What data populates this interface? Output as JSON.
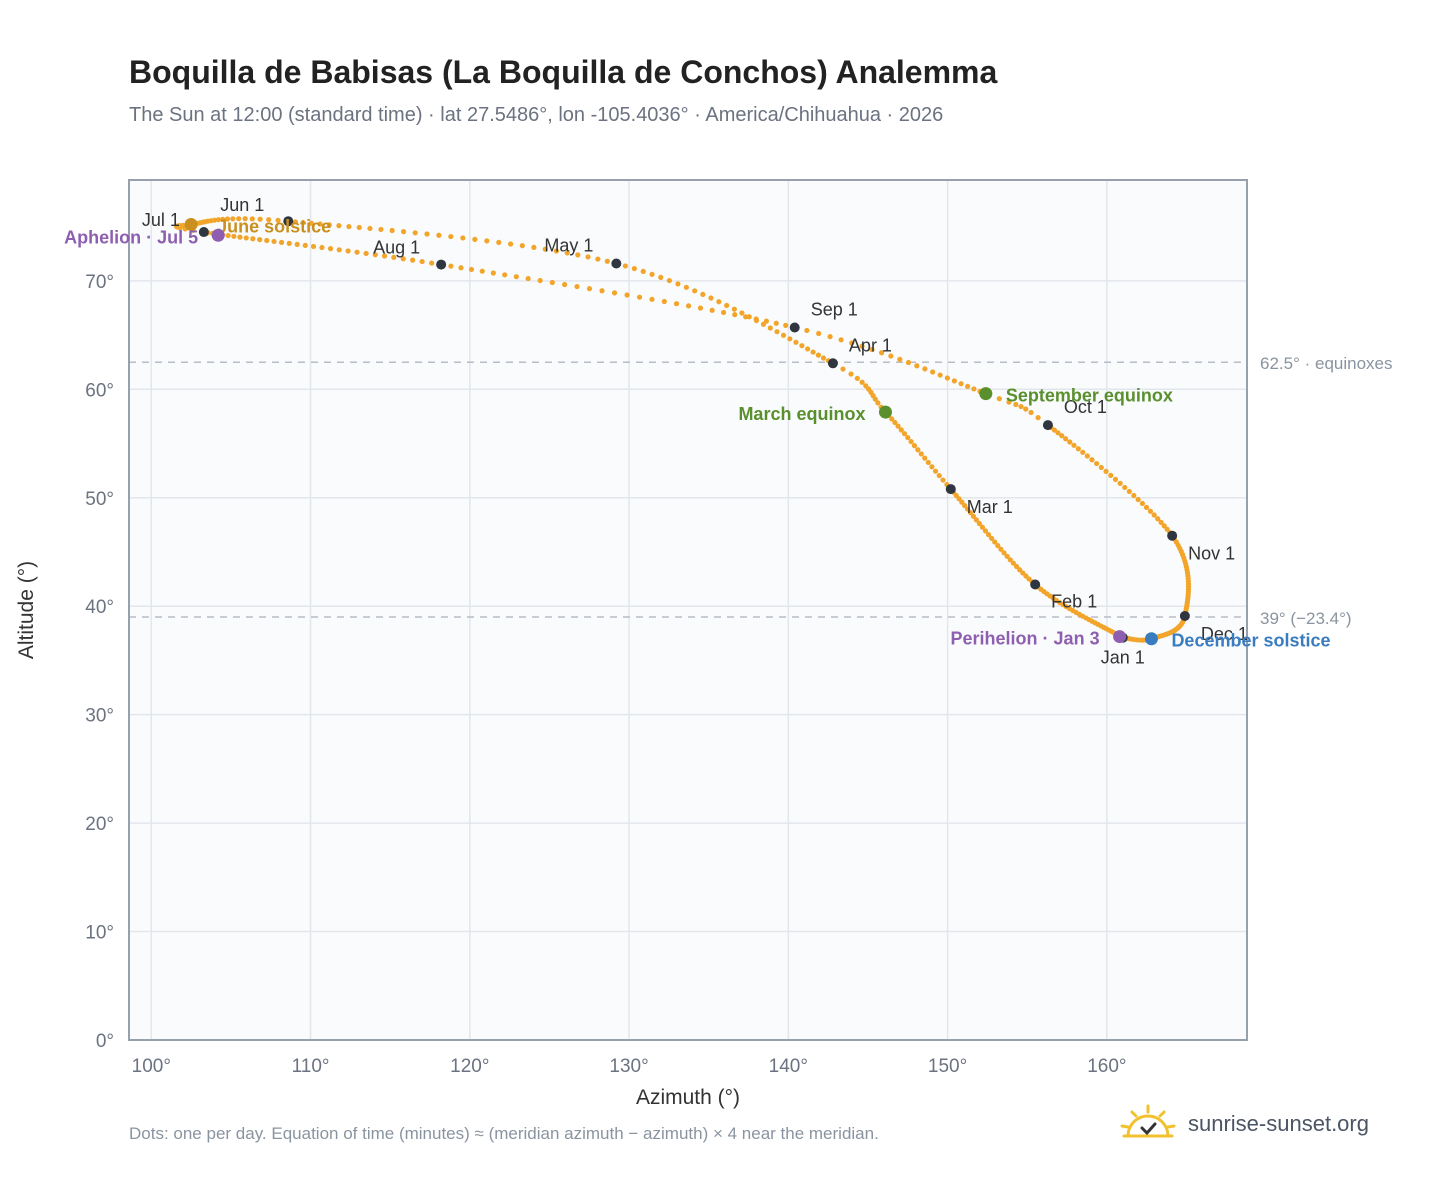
{
  "page": {
    "title": "Boquilla de Babisas (La Boquilla de Conchos) Analemma",
    "subtitle": "The Sun at 12:00 (standard time) · lat 27.5486°, lon -105.4036° · America/Chihuahua · 2026",
    "footnote": "Dots: one per day. Equation of time (minutes) ≈ (meridian azimuth − azimuth) × 4 near the meridian.",
    "brand": "sunrise-sunset.org",
    "brand_icon": "sun-logo-icon"
  },
  "colors": {
    "path": "#f2a52a",
    "month_dot": "#2f3640",
    "equinox": "#5a8f2e",
    "solstice_june": "#c9901f",
    "solstice_december": "#3a7cc0",
    "apsis": "#8e5fb0",
    "grid": "#e3e7ec",
    "plot_bg": "#f9fbfd",
    "axis": "#97a1ae"
  },
  "chart_data": {
    "type": "scatter",
    "xlabel": "Azimuth (°)",
    "ylabel": "Altitude (°)",
    "xlim": [
      98.6,
      168.8
    ],
    "ylim": [
      0,
      79.3
    ],
    "x_ticks": [
      "100°",
      "110°",
      "120°",
      "130°",
      "140°",
      "150°",
      "160°"
    ],
    "y_ticks": [
      "0°",
      "10°",
      "20°",
      "30°",
      "40°",
      "50°",
      "60°",
      "70°"
    ],
    "grid": true,
    "reference_lines": [
      {
        "y": 62.5,
        "label": "62.5° · equinoxes"
      },
      {
        "y": 39.0,
        "label": "39° (−23.4°)"
      }
    ],
    "months": [
      {
        "label": "Jan 1",
        "az": 161.0,
        "alt": 37.1
      },
      {
        "label": "Feb 1",
        "az": 155.5,
        "alt": 42.0
      },
      {
        "label": "Mar 1",
        "az": 150.2,
        "alt": 50.8
      },
      {
        "label": "Apr 1",
        "az": 142.8,
        "alt": 62.4
      },
      {
        "label": "May 1",
        "az": 129.2,
        "alt": 71.6
      },
      {
        "label": "Jun 1",
        "az": 108.6,
        "alt": 75.5
      },
      {
        "label": "Jul 1",
        "az": 103.3,
        "alt": 74.5
      },
      {
        "label": "Aug 1",
        "az": 118.2,
        "alt": 71.5
      },
      {
        "label": "Sep 1",
        "az": 140.4,
        "alt": 65.7
      },
      {
        "label": "Oct 1",
        "az": 156.3,
        "alt": 56.7
      },
      {
        "label": "Nov 1",
        "az": 164.1,
        "alt": 46.5
      },
      {
        "label": "Dec 1",
        "az": 164.9,
        "alt": 39.1
      }
    ],
    "events": [
      {
        "label": "March equinox",
        "az": 146.1,
        "alt": 57.9,
        "color": "#5a8f2e"
      },
      {
        "label": "September equinox",
        "az": 152.4,
        "alt": 59.6,
        "color": "#5a8f2e"
      },
      {
        "label": "June solstice",
        "az": 102.5,
        "alt": 75.2,
        "color": "#c9901f"
      },
      {
        "label": "December solstice",
        "az": 162.8,
        "alt": 37.0,
        "color": "#3a7cc0"
      },
      {
        "label": "Aphelion · Jul 5",
        "az": 104.2,
        "alt": 74.2,
        "color": "#8e5fb0"
      },
      {
        "label": "Perihelion · Jan 3",
        "az": 160.8,
        "alt": 37.2,
        "color": "#8e5fb0"
      }
    ],
    "path_anchors": [
      {
        "day": 1,
        "az": 161.0,
        "alt": 37.1
      },
      {
        "day": 32,
        "az": 155.5,
        "alt": 42.0
      },
      {
        "day": 60,
        "az": 150.2,
        "alt": 50.8
      },
      {
        "day": 79,
        "az": 146.1,
        "alt": 57.9
      },
      {
        "day": 91,
        "az": 142.8,
        "alt": 62.4
      },
      {
        "day": 121,
        "az": 129.2,
        "alt": 71.6
      },
      {
        "day": 152,
        "az": 108.6,
        "alt": 75.5
      },
      {
        "day": 172,
        "az": 102.5,
        "alt": 75.2
      },
      {
        "day": 182,
        "az": 103.3,
        "alt": 74.5
      },
      {
        "day": 213,
        "az": 118.2,
        "alt": 71.5
      },
      {
        "day": 244,
        "az": 140.4,
        "alt": 65.7
      },
      {
        "day": 266,
        "az": 152.4,
        "alt": 59.6
      },
      {
        "day": 274,
        "az": 156.3,
        "alt": 56.7
      },
      {
        "day": 305,
        "az": 164.1,
        "alt": 46.5
      },
      {
        "day": 335,
        "az": 164.9,
        "alt": 39.1
      },
      {
        "day": 355,
        "az": 162.8,
        "alt": 37.0
      },
      {
        "day": 366,
        "az": 161.0,
        "alt": 37.1
      }
    ]
  }
}
